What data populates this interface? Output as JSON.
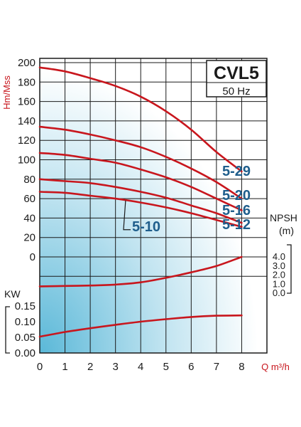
{
  "chart_data": {
    "type": "line",
    "model": "CVL5",
    "frequency": "50 Hz",
    "xlabel": "Q m³/h",
    "x_ticks": [
      "0",
      "1",
      "2",
      "3",
      "4",
      "5",
      "6",
      "7",
      "8"
    ],
    "xlim": [
      0,
      9
    ],
    "head_axis": {
      "label": "Hm/Mss",
      "ticks": [
        "200",
        "180",
        "160",
        "140",
        "120",
        "100",
        "80",
        "60",
        "40",
        "20",
        "0"
      ],
      "ylim": [
        0,
        200
      ]
    },
    "power_axis": {
      "label": "KW",
      "ticks": [
        "0.15",
        "0.10",
        "0.05",
        "0.00"
      ],
      "ylim": [
        0,
        0.15
      ]
    },
    "npsh_axis": {
      "label": "NPSH",
      "unit": "(m)",
      "ticks": [
        "4.0",
        "3.0",
        "2.0",
        "1.0",
        "0.0"
      ],
      "ylim": [
        0,
        4.0
      ]
    },
    "head_series": [
      {
        "name": "5-29",
        "x": [
          0,
          1,
          2,
          3,
          4,
          5,
          6,
          7,
          8
        ],
        "y": [
          195,
          191,
          184,
          176,
          165,
          150,
          131,
          108,
          88
        ]
      },
      {
        "name": "5-20",
        "x": [
          0,
          1,
          2,
          3,
          4,
          5,
          6,
          7,
          8
        ],
        "y": [
          134,
          131,
          126,
          120,
          113,
          103,
          91,
          77,
          60
        ]
      },
      {
        "name": "5-16",
        "x": [
          0,
          1,
          2,
          3,
          4,
          5,
          6,
          7,
          8
        ],
        "y": [
          107,
          105,
          101,
          97,
          90,
          82,
          72,
          60,
          48
        ]
      },
      {
        "name": "5-12",
        "x": [
          0,
          1,
          2,
          3,
          4,
          5,
          6,
          7,
          8
        ],
        "y": [
          80,
          78,
          76,
          72,
          67,
          61,
          53,
          45,
          35
        ]
      },
      {
        "name": "5-10",
        "x": [
          0,
          1,
          2,
          3,
          4,
          5,
          6,
          7,
          8
        ],
        "y": [
          67,
          66,
          63,
          60,
          56,
          51,
          45,
          38,
          31
        ]
      }
    ],
    "npsh_series": {
      "x": [
        0,
        1,
        2,
        3,
        4,
        5,
        6,
        7,
        8
      ],
      "y": [
        0.75,
        0.8,
        0.85,
        0.95,
        1.2,
        1.7,
        2.3,
        3.0,
        4.0
      ]
    },
    "power_series": {
      "x": [
        0,
        1,
        2,
        3,
        4,
        5,
        6,
        7,
        8
      ],
      "y": [
        0.052,
        0.067,
        0.079,
        0.09,
        0.1,
        0.108,
        0.115,
        0.119,
        0.12
      ]
    },
    "grid": true,
    "colors": {
      "curve": "#c8161d",
      "label": "#1f5e8c",
      "grid": "#1a1a1a",
      "gradient_start": "#ffffff",
      "gradient_end": "#5ab8d8"
    }
  }
}
